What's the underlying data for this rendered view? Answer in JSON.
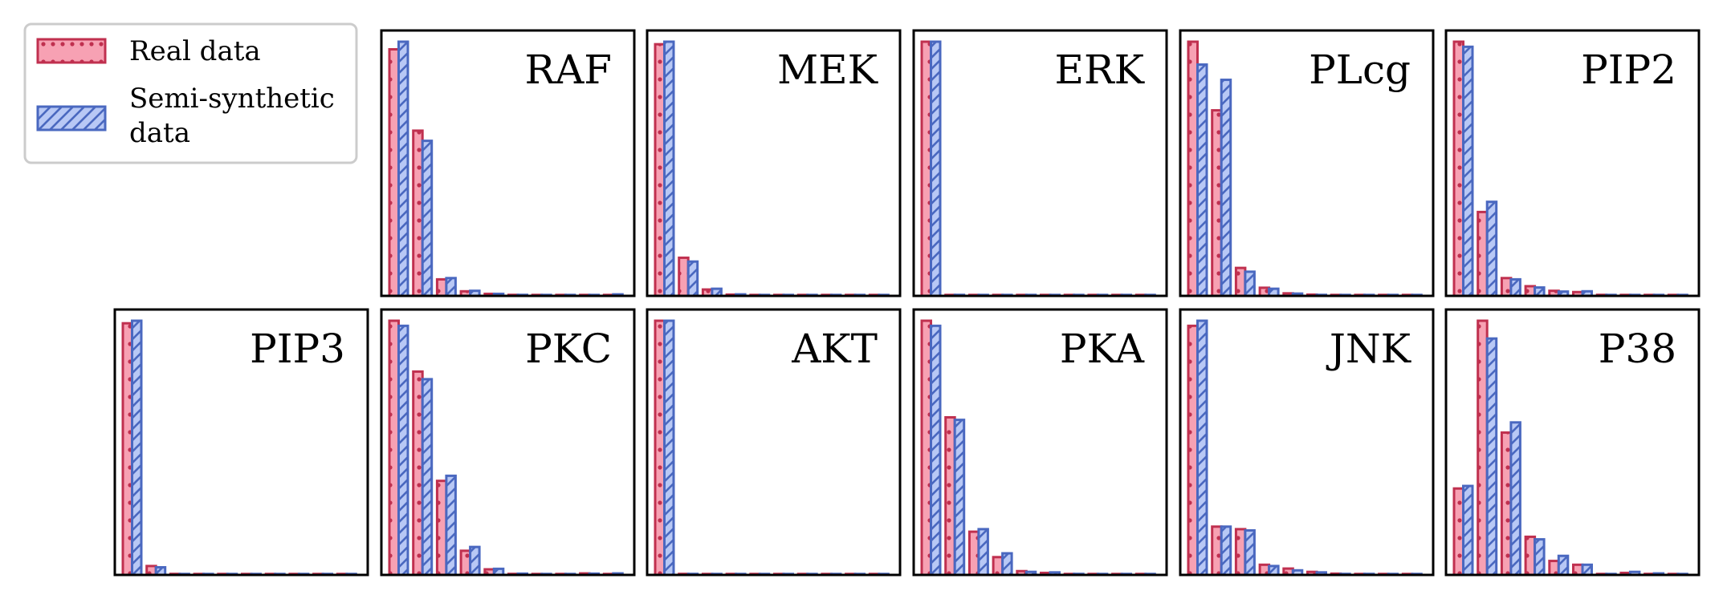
{
  "legend": {
    "items": [
      {
        "label": "Real data",
        "fill": "#f7a1b3",
        "edge": "#c0304f",
        "hatch": "dots"
      },
      {
        "label_lines": [
          "Semi-synthetic",
          "data"
        ],
        "fill": "#b8c8f5",
        "edge": "#4a68c0",
        "hatch": "diagonal"
      }
    ]
  },
  "chart_data": [
    {
      "type": "bar",
      "title": "RAF",
      "ylim": [
        0,
        1.0
      ],
      "series": [
        {
          "name": "Real data",
          "values": [
            0.97,
            0.65,
            0.065,
            0.018,
            0.008,
            0.004,
            0.002,
            0.002,
            0.001,
            0.001
          ]
        },
        {
          "name": "Semi-synthetic data",
          "values": [
            1.0,
            0.61,
            0.07,
            0.02,
            0.008,
            0.004,
            0.002,
            0.001,
            0.001,
            0.006
          ]
        }
      ]
    },
    {
      "type": "bar",
      "title": "MEK",
      "ylim": [
        0,
        1.0
      ],
      "series": [
        {
          "name": "Real data",
          "values": [
            0.99,
            0.15,
            0.025,
            0.005,
            0.002,
            0.001,
            0.001,
            0.001,
            0.001,
            0.001
          ]
        },
        {
          "name": "Semi-synthetic data",
          "values": [
            1.0,
            0.135,
            0.028,
            0.006,
            0.002,
            0.001,
            0.003,
            0.001,
            0.001,
            0.001
          ]
        }
      ]
    },
    {
      "type": "bar",
      "title": "ERK",
      "ylim": [
        0,
        1.0
      ],
      "series": [
        {
          "name": "Real data",
          "values": [
            1.0,
            0.003,
            0.001,
            0.001,
            0.001,
            0.001,
            0.001,
            0.001,
            0.001,
            0.001
          ]
        },
        {
          "name": "Semi-synthetic data",
          "values": [
            1.0,
            0.004,
            0.002,
            0.001,
            0.001,
            0.001,
            0.001,
            0.001,
            0.001,
            0.001
          ]
        }
      ]
    },
    {
      "type": "bar",
      "title": "PLcg",
      "ylim": [
        0,
        1.0
      ],
      "series": [
        {
          "name": "Real data",
          "values": [
            1.0,
            0.73,
            0.11,
            0.032,
            0.01,
            0.005,
            0.002,
            0.002,
            0.001,
            0.003
          ]
        },
        {
          "name": "Semi-synthetic data",
          "values": [
            0.91,
            0.85,
            0.095,
            0.028,
            0.009,
            0.004,
            0.003,
            0.002,
            0.002,
            0.002
          ]
        }
      ]
    },
    {
      "type": "bar",
      "title": "PIP2",
      "ylim": [
        0,
        1.0
      ],
      "series": [
        {
          "name": "Real data",
          "values": [
            1.0,
            0.33,
            0.07,
            0.038,
            0.02,
            0.015,
            0.004,
            0.002,
            0.001,
            0.001
          ]
        },
        {
          "name": "Semi-synthetic data",
          "values": [
            0.98,
            0.37,
            0.065,
            0.033,
            0.017,
            0.018,
            0.003,
            0.002,
            0.001,
            0.001
          ]
        }
      ]
    },
    {
      "type": "bar",
      "title": "PIP3",
      "ylim": [
        0,
        1.0
      ],
      "series": [
        {
          "name": "Real data",
          "values": [
            0.99,
            0.035,
            0.004,
            0.002,
            0.001,
            0.001,
            0.001,
            0.001,
            0.001,
            0.001
          ]
        },
        {
          "name": "Semi-synthetic data",
          "values": [
            1.0,
            0.03,
            0.003,
            0.002,
            0.001,
            0.001,
            0.001,
            0.001,
            0.001,
            0.001
          ]
        }
      ]
    },
    {
      "type": "bar",
      "title": "PKC",
      "ylim": [
        0,
        1.0
      ],
      "series": [
        {
          "name": "Real data",
          "values": [
            1.0,
            0.8,
            0.37,
            0.095,
            0.022,
            0.004,
            0.002,
            0.002,
            0.006,
            0.002
          ]
        },
        {
          "name": "Semi-synthetic data",
          "values": [
            0.98,
            0.77,
            0.39,
            0.11,
            0.024,
            0.005,
            0.003,
            0.003,
            0.005,
            0.006
          ]
        }
      ]
    },
    {
      "type": "bar",
      "title": "AKT",
      "ylim": [
        0,
        1.0
      ],
      "series": [
        {
          "name": "Real data",
          "values": [
            1.0,
            0.004,
            0.002,
            0.001,
            0.001,
            0.001,
            0.001,
            0.001,
            0.001,
            0.001
          ]
        },
        {
          "name": "Semi-synthetic data",
          "values": [
            1.0,
            0.004,
            0.002,
            0.001,
            0.001,
            0.001,
            0.001,
            0.001,
            0.001,
            0.001
          ]
        }
      ]
    },
    {
      "type": "bar",
      "title": "PKA",
      "ylim": [
        0,
        1.0
      ],
      "series": [
        {
          "name": "Real data",
          "values": [
            1.0,
            0.62,
            0.17,
            0.07,
            0.015,
            0.008,
            0.003,
            0.002,
            0.001,
            0.001
          ]
        },
        {
          "name": "Semi-synthetic data",
          "values": [
            0.98,
            0.61,
            0.18,
            0.085,
            0.012,
            0.01,
            0.004,
            0.002,
            0.001,
            0.001
          ]
        }
      ]
    },
    {
      "type": "bar",
      "title": "JNK",
      "ylim": [
        0,
        1.0
      ],
      "series": [
        {
          "name": "Real data",
          "values": [
            0.98,
            0.19,
            0.18,
            0.04,
            0.025,
            0.012,
            0.005,
            0.003,
            0.003,
            0.002
          ]
        },
        {
          "name": "Semi-synthetic data",
          "values": [
            1.0,
            0.19,
            0.175,
            0.035,
            0.018,
            0.01,
            0.004,
            0.004,
            0.003,
            0.002
          ]
        }
      ]
    },
    {
      "type": "bar",
      "title": "P38",
      "ylim": [
        0,
        1.0
      ],
      "series": [
        {
          "name": "Real data",
          "values": [
            0.34,
            1.0,
            0.56,
            0.15,
            0.055,
            0.04,
            0.003,
            0.008,
            0.004,
            0.002
          ]
        },
        {
          "name": "Semi-synthetic data",
          "values": [
            0.35,
            0.93,
            0.6,
            0.14,
            0.075,
            0.04,
            0.002,
            0.012,
            0.006,
            0.002
          ]
        }
      ]
    }
  ]
}
